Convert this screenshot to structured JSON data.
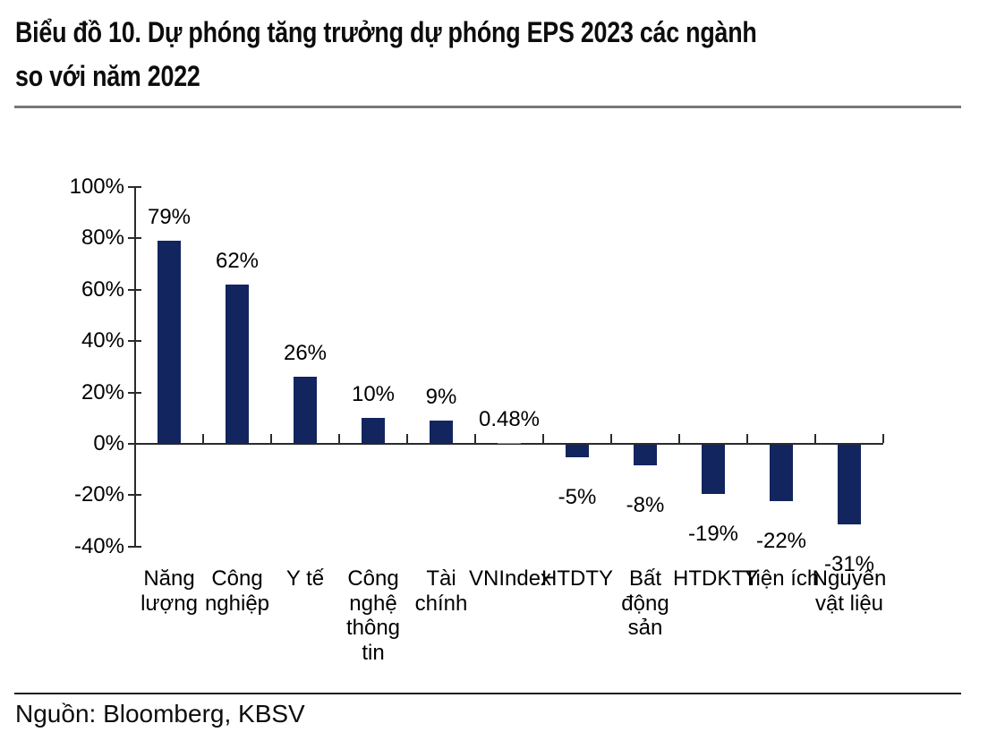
{
  "header": {
    "title": "Biểu đồ 10. Dự phóng tăng trưởng dự phóng EPS 2023 các ngành so với năm 2022",
    "title_lines": [
      "Biểu đồ 10. Dự phóng tăng trưởng dự phóng EPS 2023 các ngành",
      "so với năm 2022"
    ]
  },
  "footer": {
    "source": "Nguồn: Bloomberg, KBSV"
  },
  "chart_data": {
    "type": "bar",
    "title": "Dự phóng tăng trưởng dự phóng EPS 2023 các ngành so với năm 2022",
    "categories": [
      "Năng lượng",
      "Công nghiệp",
      "Y tế",
      "Công nghệ thông tin",
      "Tài chính",
      "VNIndex",
      "HTDTY",
      "Bất động sản",
      "HTDKTY",
      "Tiện ích",
      "Nguyên vật liệu"
    ],
    "values": [
      79,
      62,
      26,
      10,
      9,
      0.48,
      -5,
      -8,
      -19,
      -22,
      -31
    ],
    "value_labels": [
      "79%",
      "62%",
      "26%",
      "10%",
      "9%",
      "0.48%",
      "-5%",
      "-8%",
      "-19%",
      "-22%",
      "-31%"
    ],
    "point_colors": [
      "#13255E",
      "#13255E",
      "#13255E",
      "#13255E",
      "#13255E",
      "#4EA6DC",
      "#13255E",
      "#13255E",
      "#13255E",
      "#13255E",
      "#13255E"
    ],
    "bar_color": "#13255E",
    "highlight_color": "#4EA6DC",
    "highlight_index": 5,
    "xlabel": "",
    "ylabel": "",
    "ylim": [
      -40,
      100
    ],
    "y_ticks": [
      {
        "value": 100,
        "label": "100%"
      },
      {
        "value": 80,
        "label": "80%"
      },
      {
        "value": 60,
        "label": "60%"
      },
      {
        "value": 40,
        "label": "40%"
      },
      {
        "value": 20,
        "label": "20%"
      },
      {
        "value": 0,
        "label": "0%"
      },
      {
        "value": -20,
        "label": "-20%"
      },
      {
        "value": -40,
        "label": "-40%"
      }
    ],
    "grid": false,
    "legend": null
  }
}
